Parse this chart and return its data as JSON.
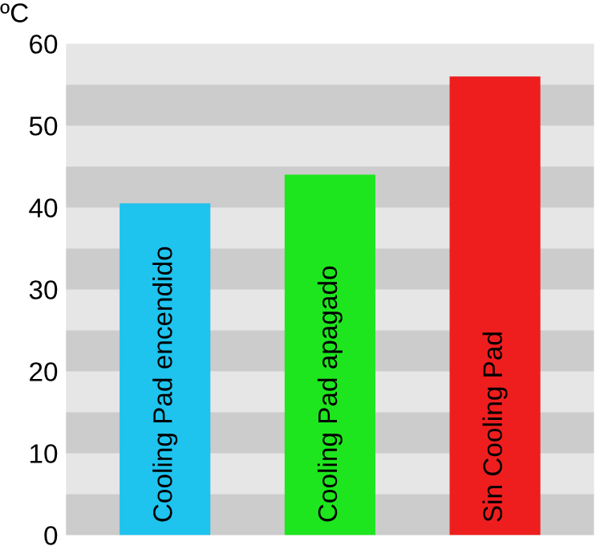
{
  "chart_data": {
    "type": "bar",
    "ylabel": "ºC",
    "categories": [
      "Cooling Pad encendido",
      "Cooling Pad apagado",
      "Sin Cooling Pad"
    ],
    "values": [
      40.5,
      44,
      56
    ],
    "colors": [
      "#1ec3ee",
      "#1ee61e",
      "#ee1e1e"
    ],
    "ylim": [
      0,
      60
    ],
    "yticks": [
      0,
      10,
      20,
      30,
      40,
      50,
      60
    ],
    "grid": false,
    "bands": [
      {
        "axis": "y",
        "from": 0,
        "to": 5,
        "color": "#cccccc"
      },
      {
        "axis": "y",
        "from": 10,
        "to": 15,
        "color": "#cccccc"
      },
      {
        "axis": "y",
        "from": 20,
        "to": 25,
        "color": "#cccccc"
      },
      {
        "axis": "y",
        "from": 30,
        "to": 35,
        "color": "#cccccc"
      },
      {
        "axis": "y",
        "from": 40,
        "to": 45,
        "color": "#cccccc"
      },
      {
        "axis": "y",
        "from": 50,
        "to": 55,
        "color": "#cccccc"
      }
    ]
  }
}
